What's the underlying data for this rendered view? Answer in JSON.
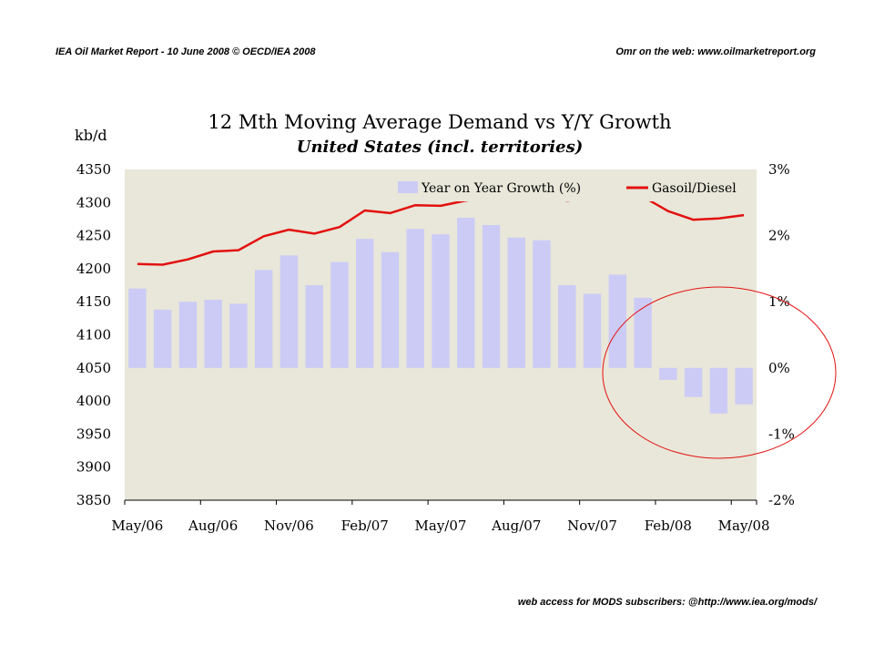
{
  "header": {
    "left": "IEA Oil Market Report - 10 June 2008     © OECD/IEA 2008",
    "right": "Omr on the web: www.oilmarketreport.org"
  },
  "footer": "web access for MODS subscribers: @http://www.iea.org/mods/",
  "chart_data": {
    "type": "bar+line",
    "title": "12 Mth Moving Average Demand vs Y/Y Growth",
    "subtitle": "United States (incl. territories)",
    "ylabel_left": "kb/d",
    "ylim_left": [
      3850,
      4350
    ],
    "ylim_right": [
      -2,
      3
    ],
    "yticks_left": [
      "4350",
      "4300",
      "4250",
      "4200",
      "4150",
      "4100",
      "4050",
      "4000",
      "3950",
      "3900",
      "3850"
    ],
    "yticks_right": [
      "3%",
      "2%",
      "1%",
      "0%",
      "-1%",
      "-2%"
    ],
    "xticks": [
      "May/06",
      "Aug/06",
      "Nov/06",
      "Feb/07",
      "May/07",
      "Aug/07",
      "Nov/07",
      "Feb/08",
      "May/08"
    ],
    "legend_position": "top-right",
    "background_color": "#e8e7d9",
    "bar_color": "#cccbf5",
    "line_color": "#e31010",
    "annotation": "red ellipse circling the Feb/08–May/08 period",
    "series": [
      {
        "name": "Year on Year Growth (%)",
        "kind": "bar",
        "axis": "right",
        "values": [
          1.2,
          0.88,
          1.0,
          1.03,
          0.97,
          1.48,
          1.7,
          1.25,
          1.6,
          1.95,
          1.75,
          2.1,
          2.02,
          2.27,
          2.16,
          1.97,
          1.93,
          1.25,
          1.12,
          1.41,
          1.06,
          -0.18,
          -0.44,
          -0.69,
          -0.55
        ]
      },
      {
        "name": "Gasoil/Diesel",
        "kind": "line",
        "axis": "left",
        "values": [
          4207,
          4206,
          4214,
          4226,
          4228,
          4249,
          4259,
          4253,
          4263,
          4288,
          4284,
          4296,
          4295,
          4303,
          4307,
          4310,
          4312,
          4303,
          4307,
          4313,
          4309,
          4287,
          4274,
          4276,
          4281
        ]
      }
    ]
  }
}
